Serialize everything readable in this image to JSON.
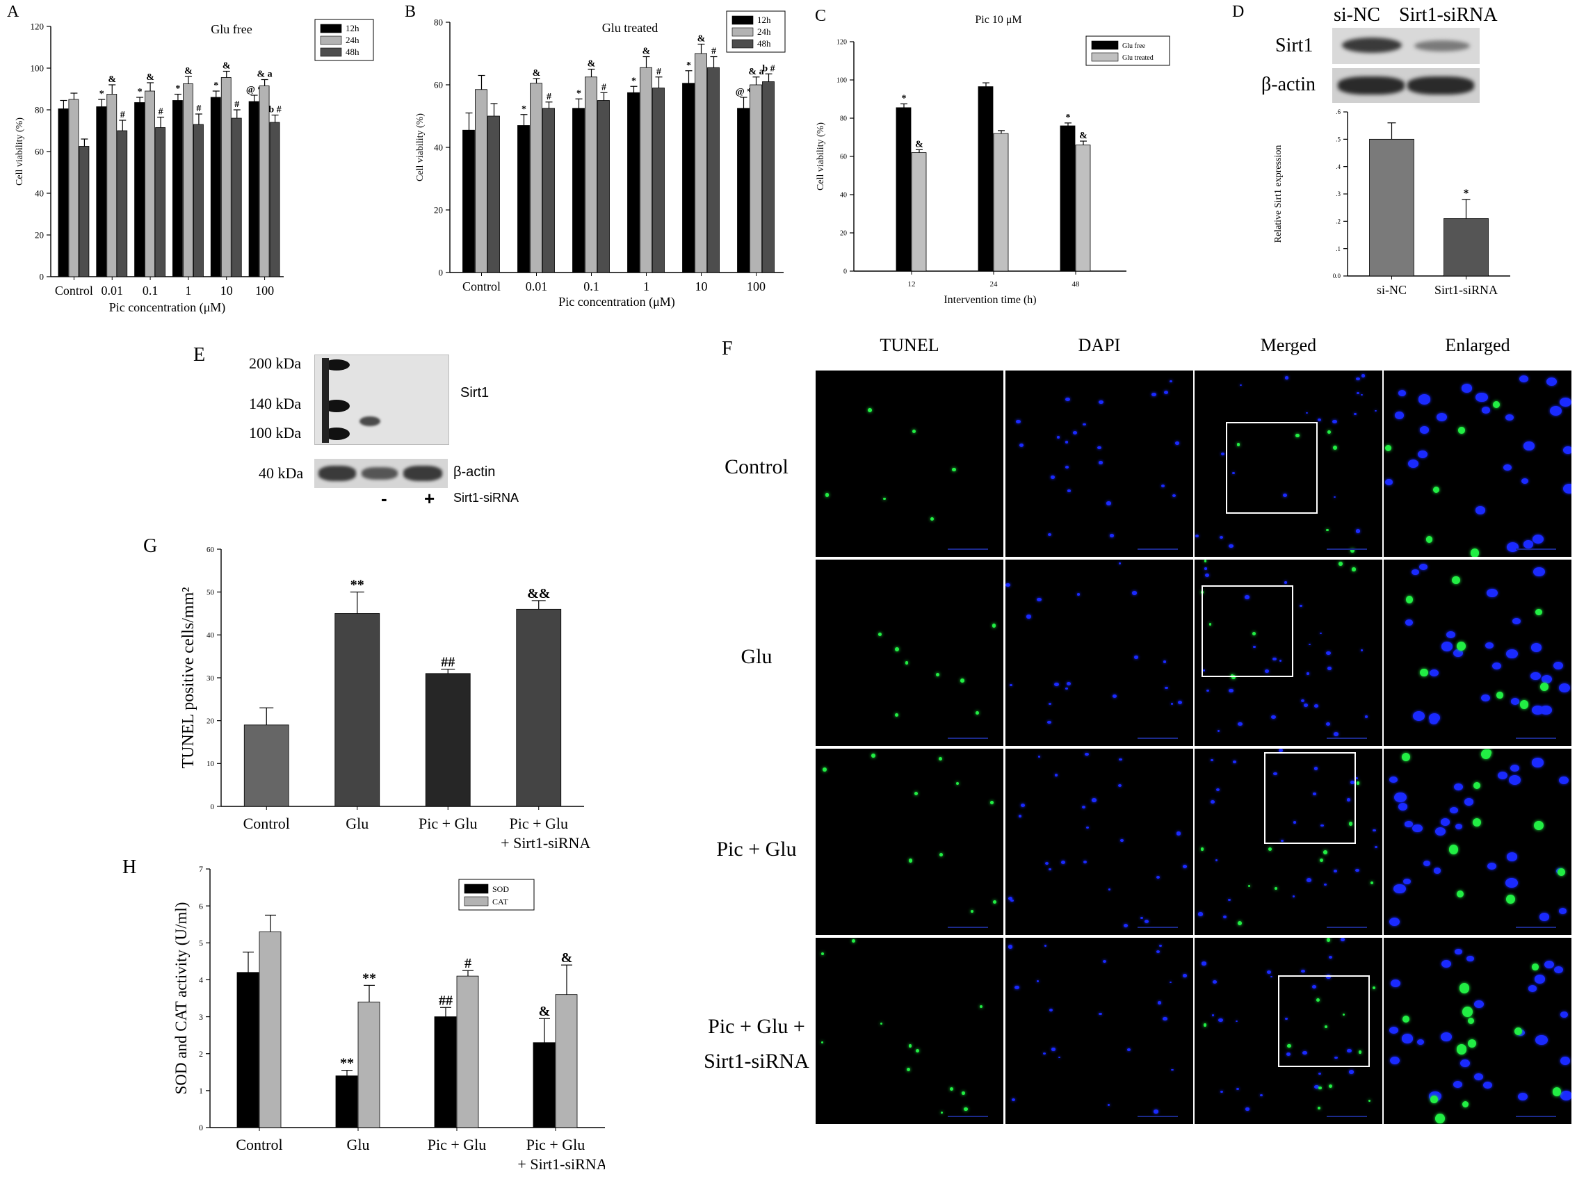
{
  "chart_data": [
    {
      "id": "A",
      "type": "bar",
      "panel_letter": "A",
      "title": "Glu free",
      "xlabel": "Pic concentration (μM)",
      "ylabel": "Cell viability (%)",
      "ylim": [
        0,
        120
      ],
      "yticks": [
        0,
        20,
        40,
        60,
        80,
        100,
        120
      ],
      "categories": [
        "Control",
        "0.01",
        "0.1",
        "1",
        "10",
        "100"
      ],
      "series": [
        {
          "name": "12h",
          "color": "#000000",
          "values": [
            80.5,
            81.5,
            83.5,
            84.5,
            86,
            84
          ],
          "errors": [
            4,
            3.5,
            2.5,
            3,
            3,
            3
          ],
          "marks": [
            "",
            "*",
            "*",
            "*",
            "*",
            "@ *"
          ]
        },
        {
          "name": "24h",
          "color": "#b3b3b3",
          "values": [
            85,
            87.5,
            89,
            92.5,
            95.5,
            91.5
          ],
          "errors": [
            3,
            4.5,
            4,
            3.5,
            3,
            3
          ],
          "marks": [
            "",
            "&",
            "&",
            "&",
            "&",
            "& a"
          ]
        },
        {
          "name": "48h",
          "color": "#4d4d4d",
          "values": [
            62.5,
            70,
            71.5,
            73,
            76,
            74
          ],
          "errors": [
            3.5,
            5,
            5,
            5,
            4,
            3.5
          ],
          "marks": [
            "",
            "#",
            "#",
            "#",
            "#",
            "b #"
          ]
        }
      ],
      "legend_position": "top-right",
      "grid": false
    },
    {
      "id": "B",
      "type": "bar",
      "panel_letter": "B",
      "title": "Glu treated",
      "xlabel": "Pic concentration (μM)",
      "ylabel": "Cell viability (%)",
      "ylim": [
        0,
        80
      ],
      "yticks": [
        0,
        20,
        40,
        60,
        80
      ],
      "categories": [
        "Control",
        "0.01",
        "0.1",
        "1",
        "10",
        "100"
      ],
      "series": [
        {
          "name": "12h",
          "color": "#000000",
          "values": [
            45.5,
            47,
            52.5,
            57.5,
            60.5,
            52.5
          ],
          "errors": [
            5.5,
            3.5,
            3,
            2,
            4,
            3.5
          ],
          "marks": [
            "",
            "*",
            "*",
            "*",
            "*",
            "@ *"
          ]
        },
        {
          "name": "24h",
          "color": "#b3b3b3",
          "values": [
            58.5,
            60.5,
            62.5,
            65.5,
            70,
            60
          ],
          "errors": [
            4.5,
            1.5,
            2.5,
            3.5,
            3,
            2.5
          ],
          "marks": [
            "",
            "&",
            "&",
            "&",
            "&",
            "& a"
          ]
        },
        {
          "name": "48h",
          "color": "#4d4d4d",
          "values": [
            50,
            52.5,
            55,
            59,
            65.5,
            61
          ],
          "errors": [
            4,
            2,
            2.5,
            3.5,
            3.5,
            2.5
          ],
          "marks": [
            "",
            "#",
            "#",
            "#",
            "#",
            "b #"
          ]
        }
      ],
      "legend_position": "top-right",
      "grid": false
    },
    {
      "id": "C",
      "type": "bar",
      "panel_letter": "C",
      "title": "Pic 10 μM",
      "xlabel": "Intervention time (h)",
      "ylabel": "Cell viability (%)",
      "ylim": [
        0,
        120
      ],
      "yticks": [
        0,
        20,
        40,
        60,
        80,
        100,
        120
      ],
      "categories": [
        "12",
        "24",
        "48"
      ],
      "series": [
        {
          "name": "Glu free",
          "color": "#000000",
          "values": [
            85.5,
            96.5,
            76
          ],
          "errors": [
            2,
            2,
            1.5
          ],
          "marks": [
            "*",
            "",
            "*"
          ]
        },
        {
          "name": "Glu treated",
          "color": "#c0c0c0",
          "values": [
            62,
            72,
            66
          ],
          "errors": [
            1.5,
            1.5,
            2
          ],
          "marks": [
            "&",
            "",
            "&"
          ]
        }
      ],
      "legend_position": "top-right",
      "grid": false
    },
    {
      "id": "D",
      "type": "bar",
      "panel_letter": "D",
      "ylabel": "Relative Sirt1 expression",
      "ylim": [
        0,
        0.6
      ],
      "yticks": [
        0.0,
        0.1,
        0.2,
        0.3,
        0.4,
        0.5,
        0.6
      ],
      "ytick_labels": [
        "0.0",
        ".1",
        ".2",
        ".3",
        ".4",
        ".5",
        ".6"
      ],
      "categories": [
        "si-NC",
        "Sirt1-siRNA"
      ],
      "series": [
        {
          "name": "",
          "colors": [
            "#7a7a7a",
            "#555555"
          ],
          "values": [
            0.5,
            0.21
          ],
          "errors": [
            0.06,
            0.07
          ],
          "marks": [
            "",
            "*"
          ]
        }
      ],
      "grid": false
    },
    {
      "id": "G",
      "type": "bar",
      "panel_letter": "G",
      "ylabel": "TUNEL positive cells/mm²",
      "ylim": [
        0,
        60
      ],
      "yticks": [
        0,
        10,
        20,
        30,
        40,
        50,
        60
      ],
      "categories": [
        "Control",
        "Glu",
        "Pic + Glu",
        "Pic + Glu + Sirt1-siRNA"
      ],
      "category_lines": [
        [
          "Control"
        ],
        [
          "Glu"
        ],
        [
          "Pic + Glu"
        ],
        [
          "Pic + Glu",
          "+ Sirt1-siRNA"
        ]
      ],
      "series": [
        {
          "name": "",
          "colors": [
            "#666666",
            "#444444",
            "#262626",
            "#444444"
          ],
          "values": [
            19,
            45,
            31,
            46
          ],
          "errors": [
            4,
            5,
            1,
            2
          ],
          "marks": [
            "",
            "**",
            "##",
            "&&"
          ]
        }
      ],
      "grid": false
    },
    {
      "id": "H",
      "type": "bar",
      "panel_letter": "H",
      "ylabel": "SOD and CAT activity (U/ml)",
      "ylim": [
        0,
        7
      ],
      "yticks": [
        0,
        1,
        2,
        3,
        4,
        5,
        6,
        7
      ],
      "categories": [
        "Control",
        "Glu",
        "Pic + Glu",
        "Pic + Glu + Sirt1-siRNA"
      ],
      "category_lines": [
        [
          "Control"
        ],
        [
          "Glu"
        ],
        [
          "Pic + Glu"
        ],
        [
          "Pic + Glu",
          "+ Sirt1-siRNA"
        ]
      ],
      "series": [
        {
          "name": "SOD",
          "color": "#000000",
          "values": [
            4.2,
            1.4,
            3.0,
            2.3
          ],
          "errors": [
            0.55,
            0.15,
            0.25,
            0.65
          ],
          "marks": [
            "",
            "**",
            "##",
            "&"
          ]
        },
        {
          "name": "CAT",
          "color": "#b3b3b3",
          "values": [
            5.3,
            3.4,
            4.1,
            3.6
          ],
          "errors": [
            0.45,
            0.45,
            0.15,
            0.8
          ],
          "marks": [
            "",
            "**",
            "#",
            "&"
          ]
        }
      ],
      "legend_position": "top-right",
      "grid": false
    }
  ],
  "blot_d": {
    "letter": "D",
    "lanes": [
      "si-NC",
      "Sirt1-siRNA"
    ],
    "rows": [
      "Sirt1",
      "β-actin"
    ]
  },
  "blot_e": {
    "letter": "E",
    "markers": [
      "200 kDa",
      "140 kDa",
      "100 kDa",
      "40 kDa"
    ],
    "protein_labels": [
      "Sirt1",
      "β-actin"
    ],
    "lanes": [
      "-",
      "+"
    ],
    "lane_caption": "Sirt1-siRNA"
  },
  "micrographs": {
    "letter": "F",
    "columns": [
      "TUNEL",
      "DAPI",
      "Merged",
      "Enlarged"
    ],
    "rows": [
      "Control",
      "Glu",
      "Pic + Glu",
      "Pic + Glu + Sirt1-siRNA"
    ],
    "row_lines": [
      [
        "Control"
      ],
      [
        "Glu"
      ],
      [
        "Pic + Glu"
      ],
      [
        "Pic + Glu +",
        "Sirt1-siRNA"
      ]
    ]
  }
}
